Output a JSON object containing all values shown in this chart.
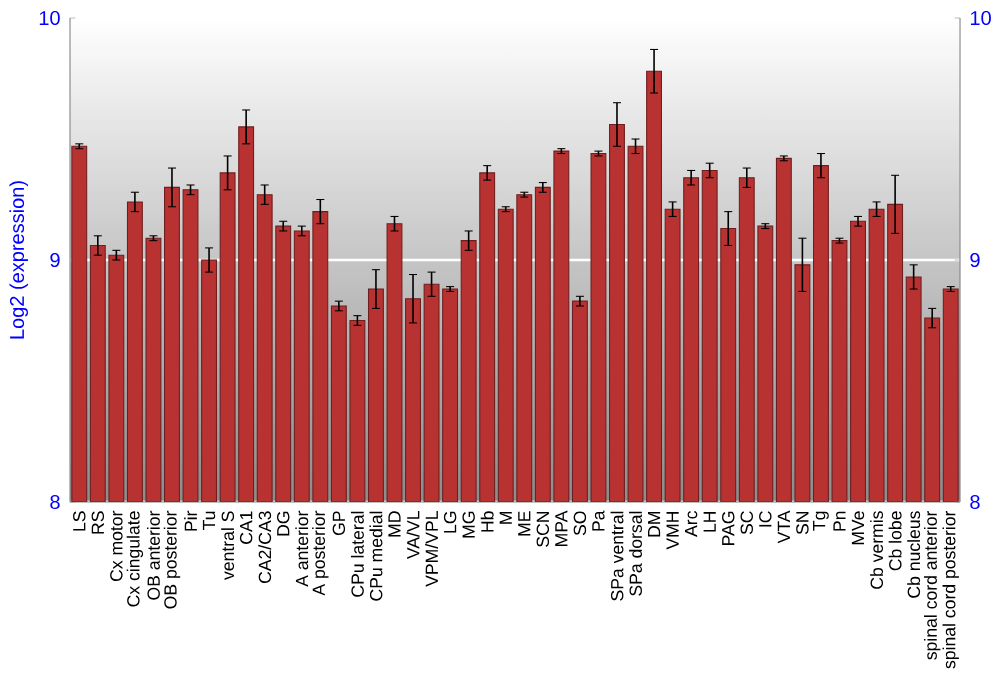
{
  "chart_data": {
    "type": "bar",
    "ylabel": "Log2 (expression)",
    "categories": [
      "LS",
      "RS",
      "Cx motor",
      "Cx cingulate",
      "OB anterior",
      "OB posterior",
      "Pir",
      "Tu",
      "ventral S",
      "CA1",
      "CA2/CA3",
      "DG",
      "A anterior",
      "A posterior",
      "GP",
      "CPu lateral",
      "CPu medial",
      "MD",
      "VA/VL",
      "VPM/VPL",
      "LG",
      "MG",
      "Hb",
      "M",
      "ME",
      "SCN",
      "MPA",
      "SO",
      "Pa",
      "SPa ventral",
      "SPa dorsal",
      "DM",
      "VMH",
      "Arc",
      "LH",
      "PAG",
      "SC",
      "IC",
      "VTA",
      "SN",
      "Tg",
      "Pn",
      "MVe",
      "Cb vermis",
      "Cb lobe",
      "Cb nucleus",
      "spinal cord anterior",
      "spinal cord posterior"
    ],
    "values": [
      9.47,
      9.06,
      9.02,
      9.24,
      9.09,
      9.3,
      9.29,
      9.0,
      9.36,
      9.55,
      9.27,
      9.14,
      9.12,
      9.2,
      8.81,
      8.75,
      8.88,
      9.15,
      8.84,
      8.9,
      8.88,
      9.08,
      9.36,
      9.21,
      9.27,
      9.3,
      9.45,
      8.83,
      9.44,
      9.56,
      9.47,
      9.78,
      9.21,
      9.34,
      9.37,
      9.13,
      9.34,
      9.14,
      9.42,
      8.98,
      9.39,
      9.08,
      9.16,
      9.21,
      9.23,
      8.93,
      8.76,
      8.88
    ],
    "errors": [
      0.01,
      0.04,
      0.02,
      0.04,
      0.01,
      0.08,
      0.02,
      0.05,
      0.07,
      0.07,
      0.04,
      0.02,
      0.02,
      0.05,
      0.02,
      0.02,
      0.08,
      0.03,
      0.1,
      0.05,
      0.01,
      0.04,
      0.03,
      0.01,
      0.01,
      0.02,
      0.01,
      0.02,
      0.01,
      0.09,
      0.03,
      0.09,
      0.03,
      0.03,
      0.03,
      0.07,
      0.04,
      0.01,
      0.01,
      0.11,
      0.05,
      0.01,
      0.02,
      0.03,
      0.12,
      0.05,
      0.04,
      0.01
    ],
    "color": "#b83232",
    "ylim": [
      8,
      10
    ],
    "yticks": [
      8,
      9,
      10
    ],
    "y2lim": [
      8,
      10
    ],
    "y2ticks": [
      8,
      9,
      10
    ],
    "grid": "y"
  }
}
